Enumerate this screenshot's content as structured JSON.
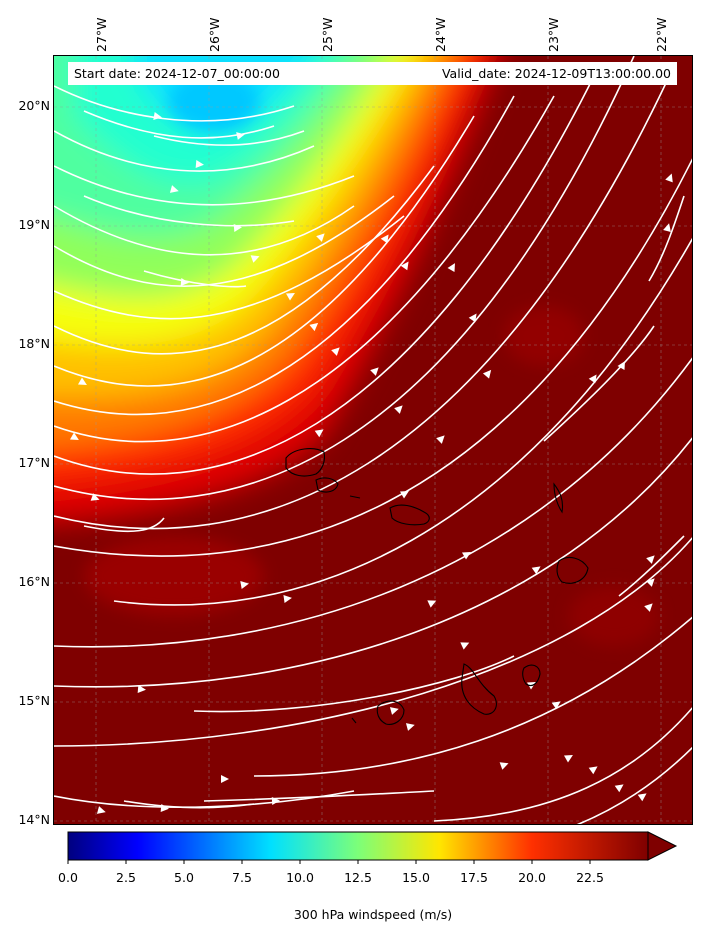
{
  "map": {
    "start_date": "Start date: 2024-12-07_00:00:00",
    "valid_date": "Valid_date: 2024-12-09T13:00:00.00",
    "lon_labels": [
      "27°W",
      "26°W",
      "25°W",
      "24°W",
      "23°W",
      "22°W"
    ],
    "lat_labels": [
      "20°N",
      "19°N",
      "18°N",
      "17°N",
      "16°N",
      "15°N",
      "14°N"
    ],
    "field": "300 hPa windspeed",
    "colormap": "jet",
    "max_color": "#7f0000",
    "streamline_color": "#ffffff",
    "coastline_color": "#000000",
    "gridlines": true
  },
  "colorbar": {
    "label": "300 hPa windspeed (m/s)",
    "ticks": [
      "0.0",
      "2.5",
      "5.0",
      "7.5",
      "10.0",
      "12.5",
      "15.0",
      "17.5",
      "20.0",
      "22.5"
    ],
    "min": 0,
    "max": 25,
    "extend": "max"
  }
}
